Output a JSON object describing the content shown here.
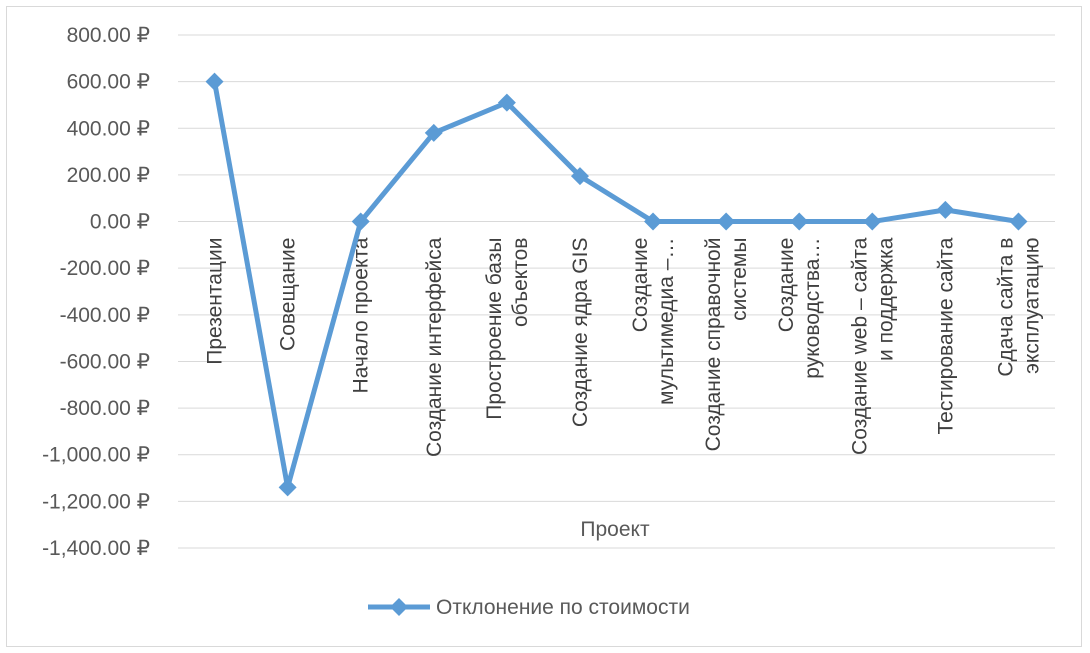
{
  "chart_data": {
    "type": "line",
    "xlabel": "Проект",
    "ylabel": "",
    "ylim": [
      -1400,
      800
    ],
    "y_step": 200,
    "y_tick_labels": [
      "800.00 ₽",
      "600.00 ₽",
      "400.00 ₽",
      "200.00 ₽",
      "0.00 ₽",
      "-200.00 ₽",
      "-400.00 ₽",
      "-600.00 ₽",
      "-800.00 ₽",
      "-1,000.00 ₽",
      "-1,200.00 ₽",
      "-1,400.00 ₽"
    ],
    "categories": [
      [
        "Презентации"
      ],
      [
        "Совещание"
      ],
      [
        "Начало проекта"
      ],
      [
        "Создание интерфейса"
      ],
      [
        "Простроение базы",
        "объектов"
      ],
      [
        "Создание ядра GIS"
      ],
      [
        "Создание",
        "мультимедиа –…"
      ],
      [
        "Создание справочной",
        "системы"
      ],
      [
        "Создание",
        "руководства…"
      ],
      [
        "Создание web – сайта",
        "и поддержка"
      ],
      [
        "Тестирование сайта"
      ],
      [
        "Сдача сайта в",
        "эксплуатацию"
      ]
    ],
    "series": [
      {
        "name": "Отклонение по стоимости",
        "color": "#5b9bd5",
        "values": [
          600,
          -1140,
          0,
          380,
          510,
          195,
          0,
          0,
          0,
          0,
          50,
          0
        ]
      }
    ],
    "grid": true,
    "legend": "bottom"
  }
}
